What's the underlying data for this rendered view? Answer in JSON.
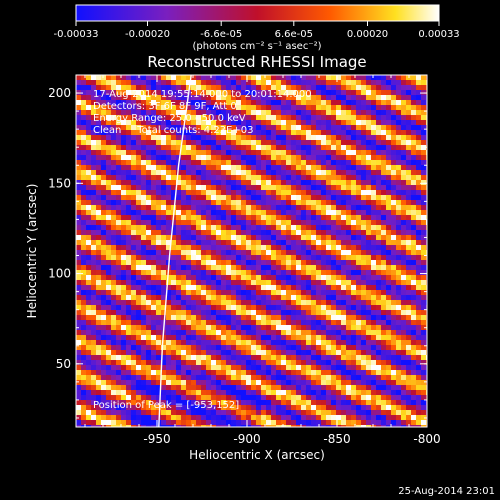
{
  "chart_data": {
    "type": "heatmap",
    "title": "Reconstructed RHESSI Image",
    "xlabel": "Heliocentric X (arcsec)",
    "ylabel": "Heliocentric Y (arcsec)",
    "xlim": [
      -995,
      -800
    ],
    "ylim": [
      15,
      210
    ],
    "xticks": [
      -950,
      -900,
      -850,
      -800
    ],
    "yticks": [
      50,
      100,
      150,
      200
    ],
    "colorbar": {
      "ticks": [
        "-0.00033",
        "-0.00020",
        "-6.6e-05",
        "6.6e-05",
        "0.00020",
        "0.00033"
      ],
      "values": [
        -0.00033,
        -0.0002,
        -6.6e-05,
        6.6e-05,
        0.0002,
        0.00033
      ],
      "range": [
        -0.00033,
        0.00033
      ],
      "unit_label": "(photons cm⁻² s⁻¹ asec⁻²)",
      "colormap": "blue-purple-red-yellow-white"
    },
    "annotations": [
      "17-Aug-2014 19:55:14.000 to 20:01:14.000",
      "Detectors: 3F 6F 8F 9F, Att 0",
      "Energy Range: 25.0 - 50.0 keV",
      "Clean     Total counts: 4.23E+03"
    ],
    "peak_label": "Position of Peak = [-953,152]",
    "peak": [
      -953,
      152
    ],
    "limb_curve": [
      [
        -949,
        15
      ],
      [
        -947,
        60
      ],
      [
        -943,
        110
      ],
      [
        -938,
        160
      ],
      [
        -931,
        210
      ]
    ],
    "pattern": "diagonal fringes, rising to the right",
    "timestamp": "25-Aug-2014 23:01"
  }
}
